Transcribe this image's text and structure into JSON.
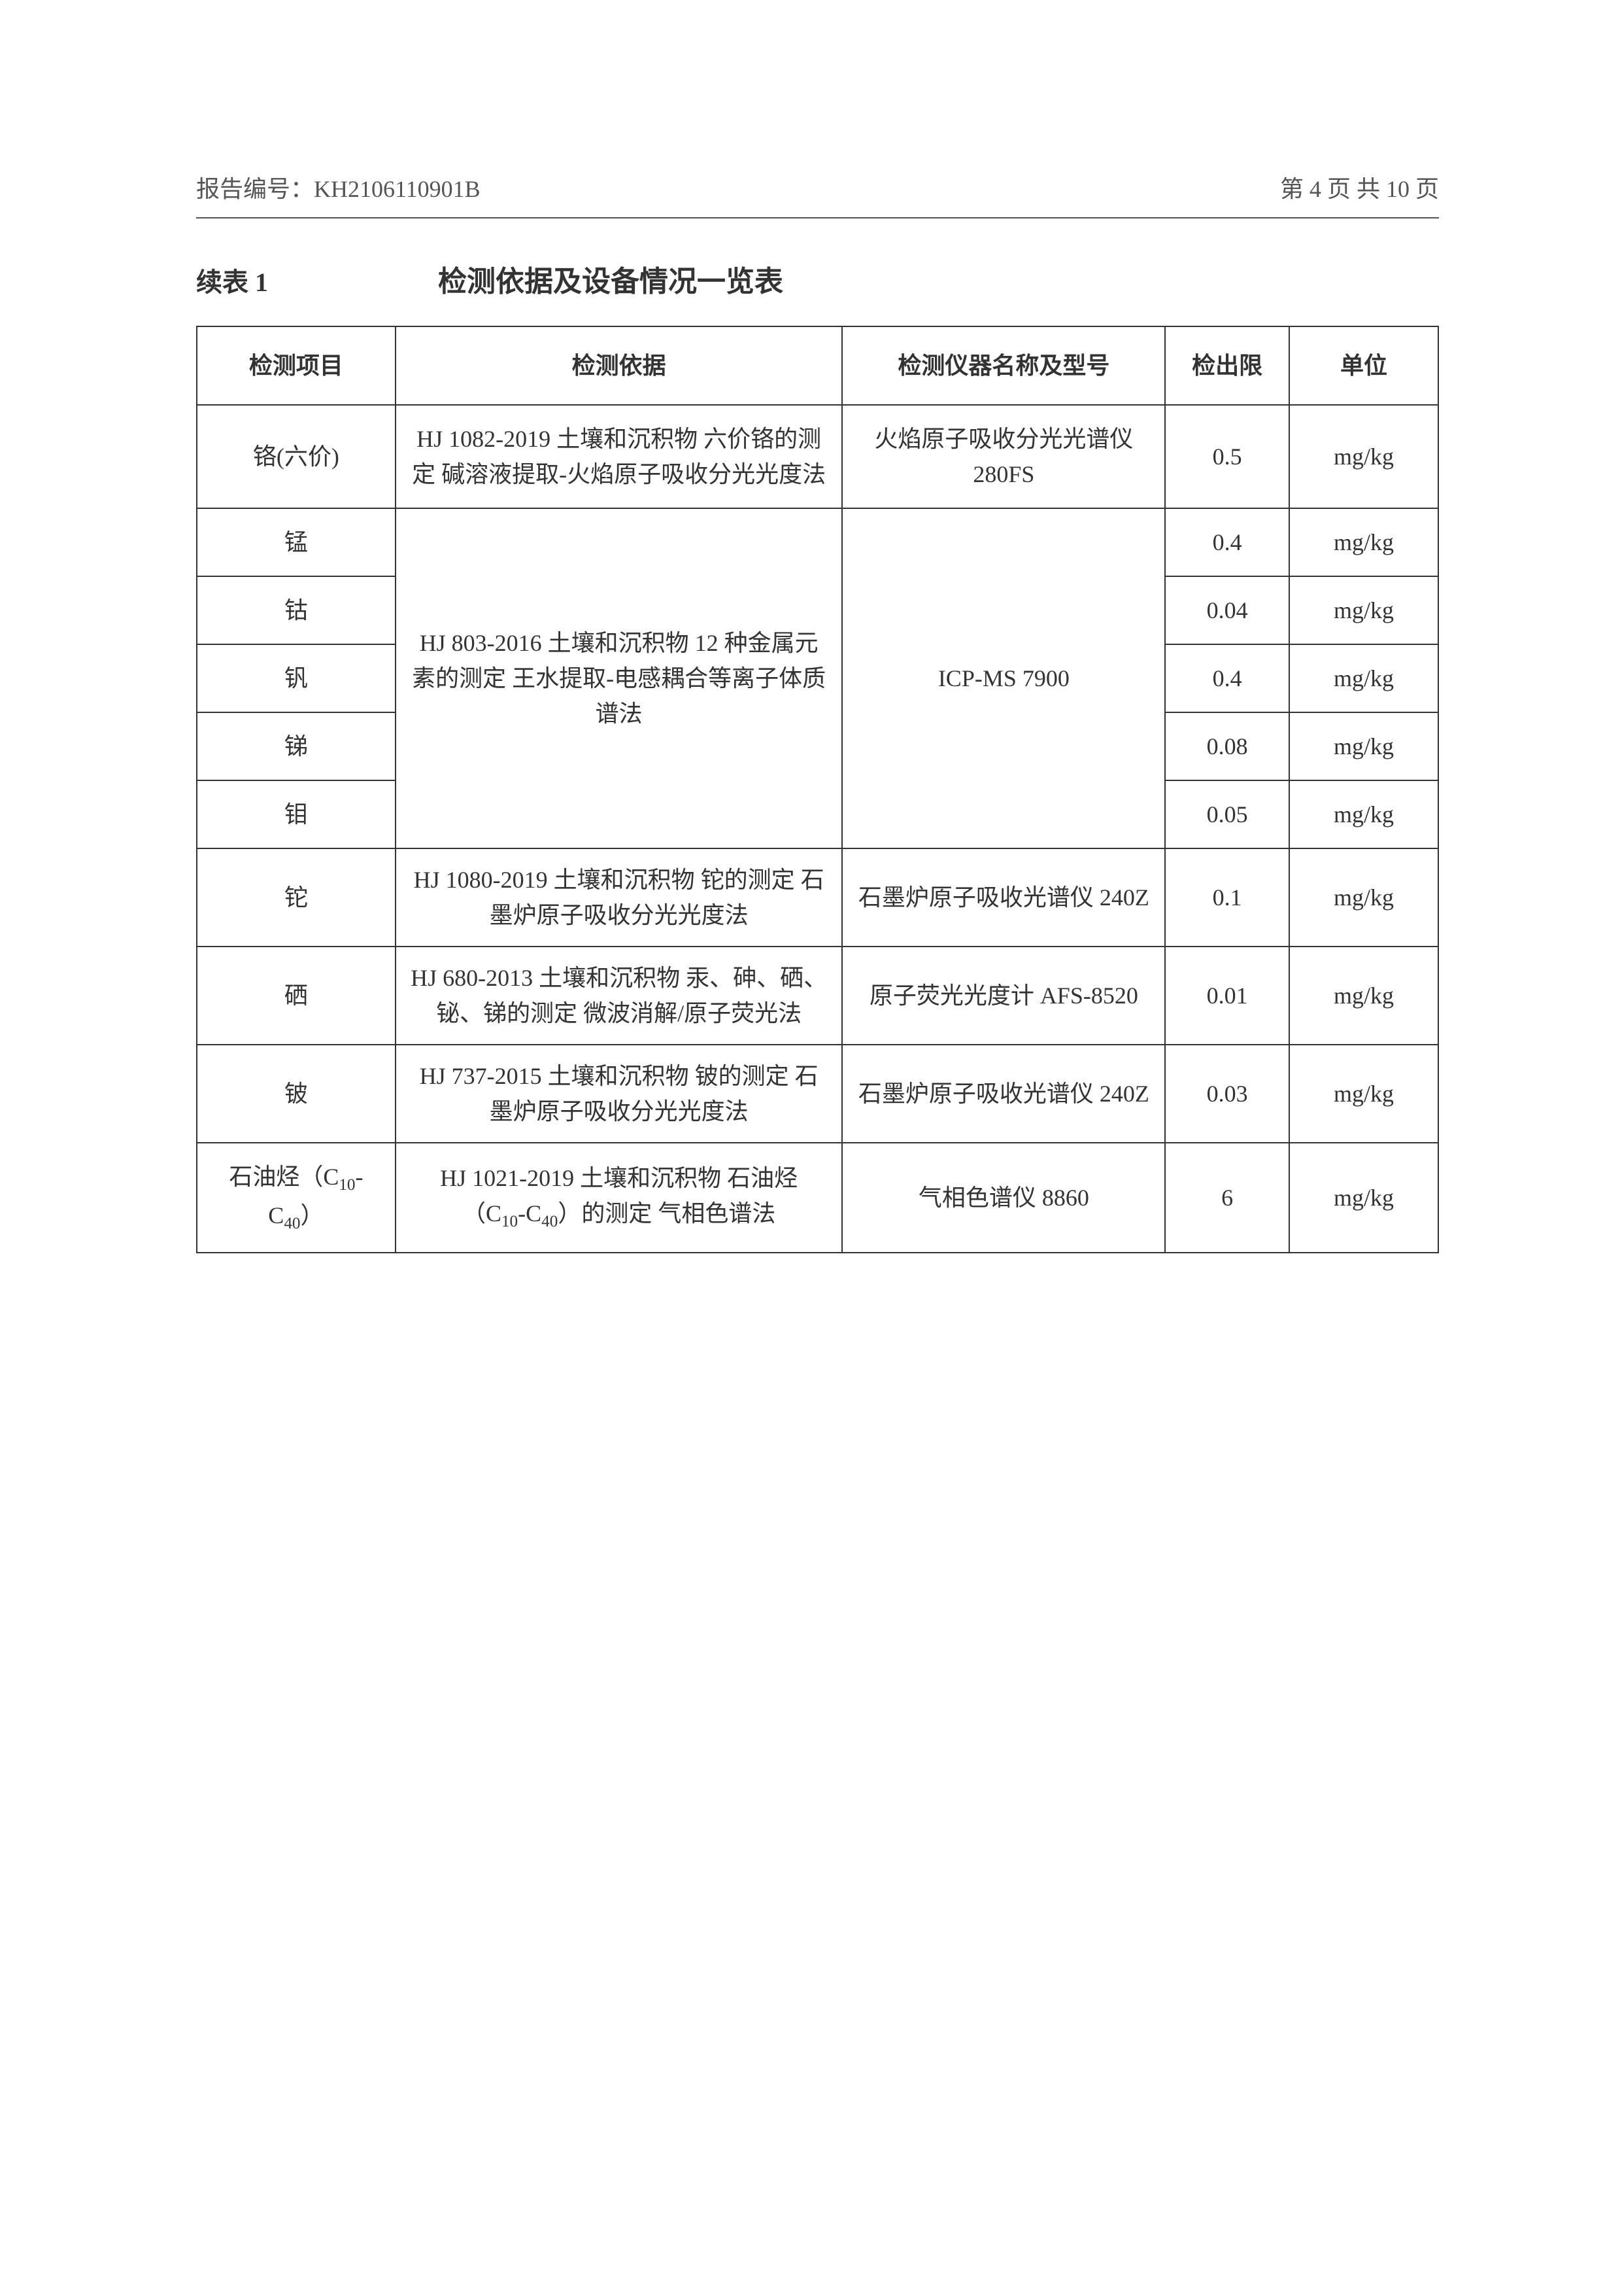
{
  "header": {
    "report_label": "报告编号：",
    "report_no": "KH2106110901B",
    "page_text": "第 4 页 共 10 页"
  },
  "table": {
    "continuation_label": "续表 1",
    "title": "检测依据及设备情况一览表",
    "columns": {
      "item": "检测项目",
      "basis": "检测依据",
      "instrument": "检测仪器名称及型号",
      "limit": "检出限",
      "unit": "单位"
    },
    "rows": [
      {
        "item": "铬(六价)",
        "basis": "HJ 1082-2019 土壤和沉积物 六价铬的测定 碱溶液提取-火焰原子吸收分光光度法",
        "instrument": "火焰原子吸收分光光谱仪 280FS",
        "limit": "0.5",
        "unit": "mg/kg"
      },
      {
        "item": "锰",
        "limit": "0.4",
        "unit": "mg/kg"
      },
      {
        "item": "钴",
        "limit": "0.04",
        "unit": "mg/kg"
      },
      {
        "item": "钒",
        "limit": "0.4",
        "unit": "mg/kg"
      },
      {
        "item": "锑",
        "limit": "0.08",
        "unit": "mg/kg"
      },
      {
        "item": "钼",
        "limit": "0.05",
        "unit": "mg/kg"
      },
      {
        "item": "铊",
        "basis": "HJ 1080-2019 土壤和沉积物 铊的测定 石墨炉原子吸收分光光度法",
        "instrument": "石墨炉原子吸收光谱仪 240Z",
        "limit": "0.1",
        "unit": "mg/kg"
      },
      {
        "item": "硒",
        "basis": "HJ 680-2013 土壤和沉积物 汞、砷、硒、铋、锑的测定 微波消解/原子荧光法",
        "instrument": "原子荧光光度计 AFS-8520",
        "limit": "0.01",
        "unit": "mg/kg"
      },
      {
        "item": "铍",
        "basis": "HJ 737-2015 土壤和沉积物 铍的测定 石墨炉原子吸收分光光度法",
        "instrument": "石墨炉原子吸收光谱仪 240Z",
        "limit": "0.03",
        "unit": "mg/kg"
      },
      {
        "item_html": "石油烃（C<sub>10</sub>-C<sub>40</sub>）",
        "basis_html": "HJ 1021-2019 土壤和沉积物 石油烃（C<sub>10</sub>-C<sub>40</sub>）的测定 气相色谱法",
        "instrument": "气相色谱仪 8860",
        "limit": "6",
        "unit": "mg/kg"
      }
    ],
    "merged_basis": "HJ 803-2016 土壤和沉积物 12 种金属元素的测定 王水提取-电感耦合等离子体质谱法",
    "merged_instrument": "ICP-MS 7900"
  },
  "style": {
    "text_color": "#333333",
    "header_text_color": "#555555",
    "border_color": "#333333",
    "background": "#ffffff",
    "body_fontsize": 36,
    "title_fontsize": 44,
    "label_fontsize": 40
  }
}
